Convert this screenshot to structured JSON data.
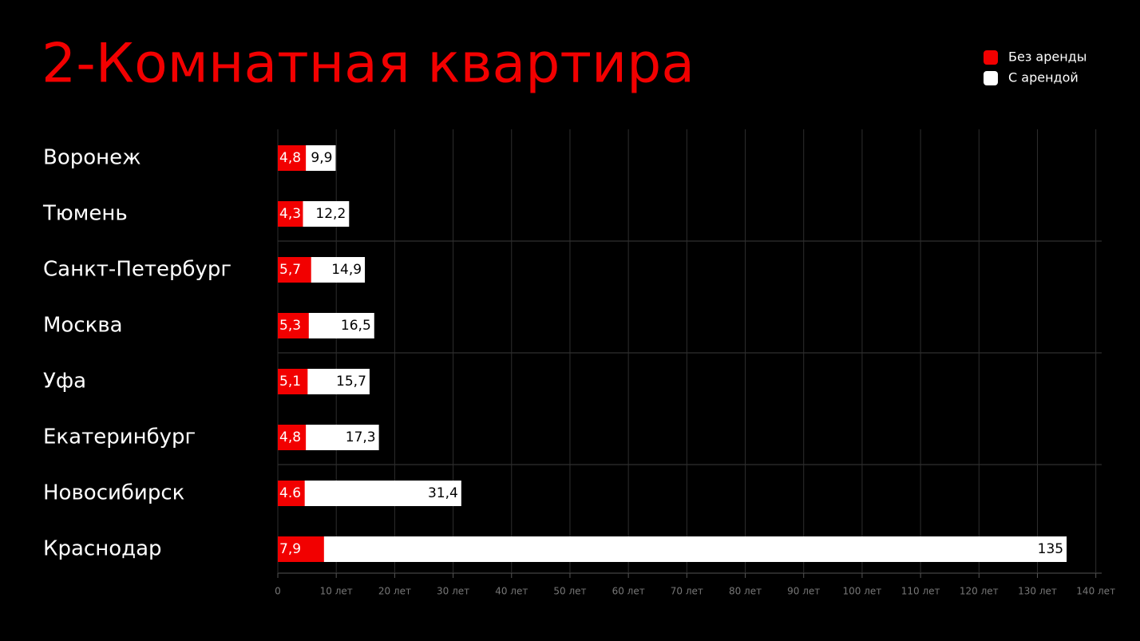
{
  "chart_data": {
    "type": "bar",
    "orientation": "horizontal",
    "title": "2-Комнатная квартира",
    "categories": [
      "Воронеж",
      "Тюмень",
      "Санкт-Петербург",
      "Москва",
      "Уфа",
      "Екатеринбург",
      "Новосибирск",
      "Краснодар"
    ],
    "series": [
      {
        "name": "С арендой",
        "color": "#ffffff",
        "values": [
          9.9,
          12.2,
          14.9,
          16.5,
          15.7,
          17.3,
          31.4,
          135
        ],
        "value_labels": [
          "9,9",
          "12,2",
          "14,9",
          "16,5",
          "15,7",
          "17,3",
          "31,4",
          "135"
        ]
      },
      {
        "name": "Без аренды",
        "color": "#f20000",
        "values": [
          4.8,
          4.3,
          5.7,
          5.3,
          5.1,
          4.8,
          4.6,
          7.9
        ],
        "value_labels": [
          "4,8",
          "4,3",
          "5,7",
          "5,3",
          "5,1",
          "4,8",
          "4.6",
          "7,9"
        ]
      }
    ],
    "xlim": [
      0,
      141
    ],
    "xticks": [
      0,
      {
        "value": 10,
        "label": "10 лет"
      },
      {
        "value": 20,
        "label": "20 лет"
      },
      {
        "value": 30,
        "label": "30 лет"
      },
      {
        "value": 40,
        "label": "40 лет"
      },
      {
        "value": 50,
        "label": "50 лет"
      },
      {
        "value": 60,
        "label": "60 лет"
      },
      {
        "value": 70,
        "label": "70 лет"
      },
      {
        "value": 80,
        "label": "80 лет"
      },
      {
        "value": 90,
        "label": "90 лет"
      },
      {
        "value": 100,
        "label": "100 лет"
      },
      {
        "value": 110,
        "label": "110 лет"
      },
      {
        "value": 120,
        "label": "120 лет"
      },
      {
        "value": 130,
        "label": "130 лет"
      },
      {
        "value": 140,
        "label": "140 лет"
      }
    ],
    "grid": true,
    "legend": "top-right"
  }
}
